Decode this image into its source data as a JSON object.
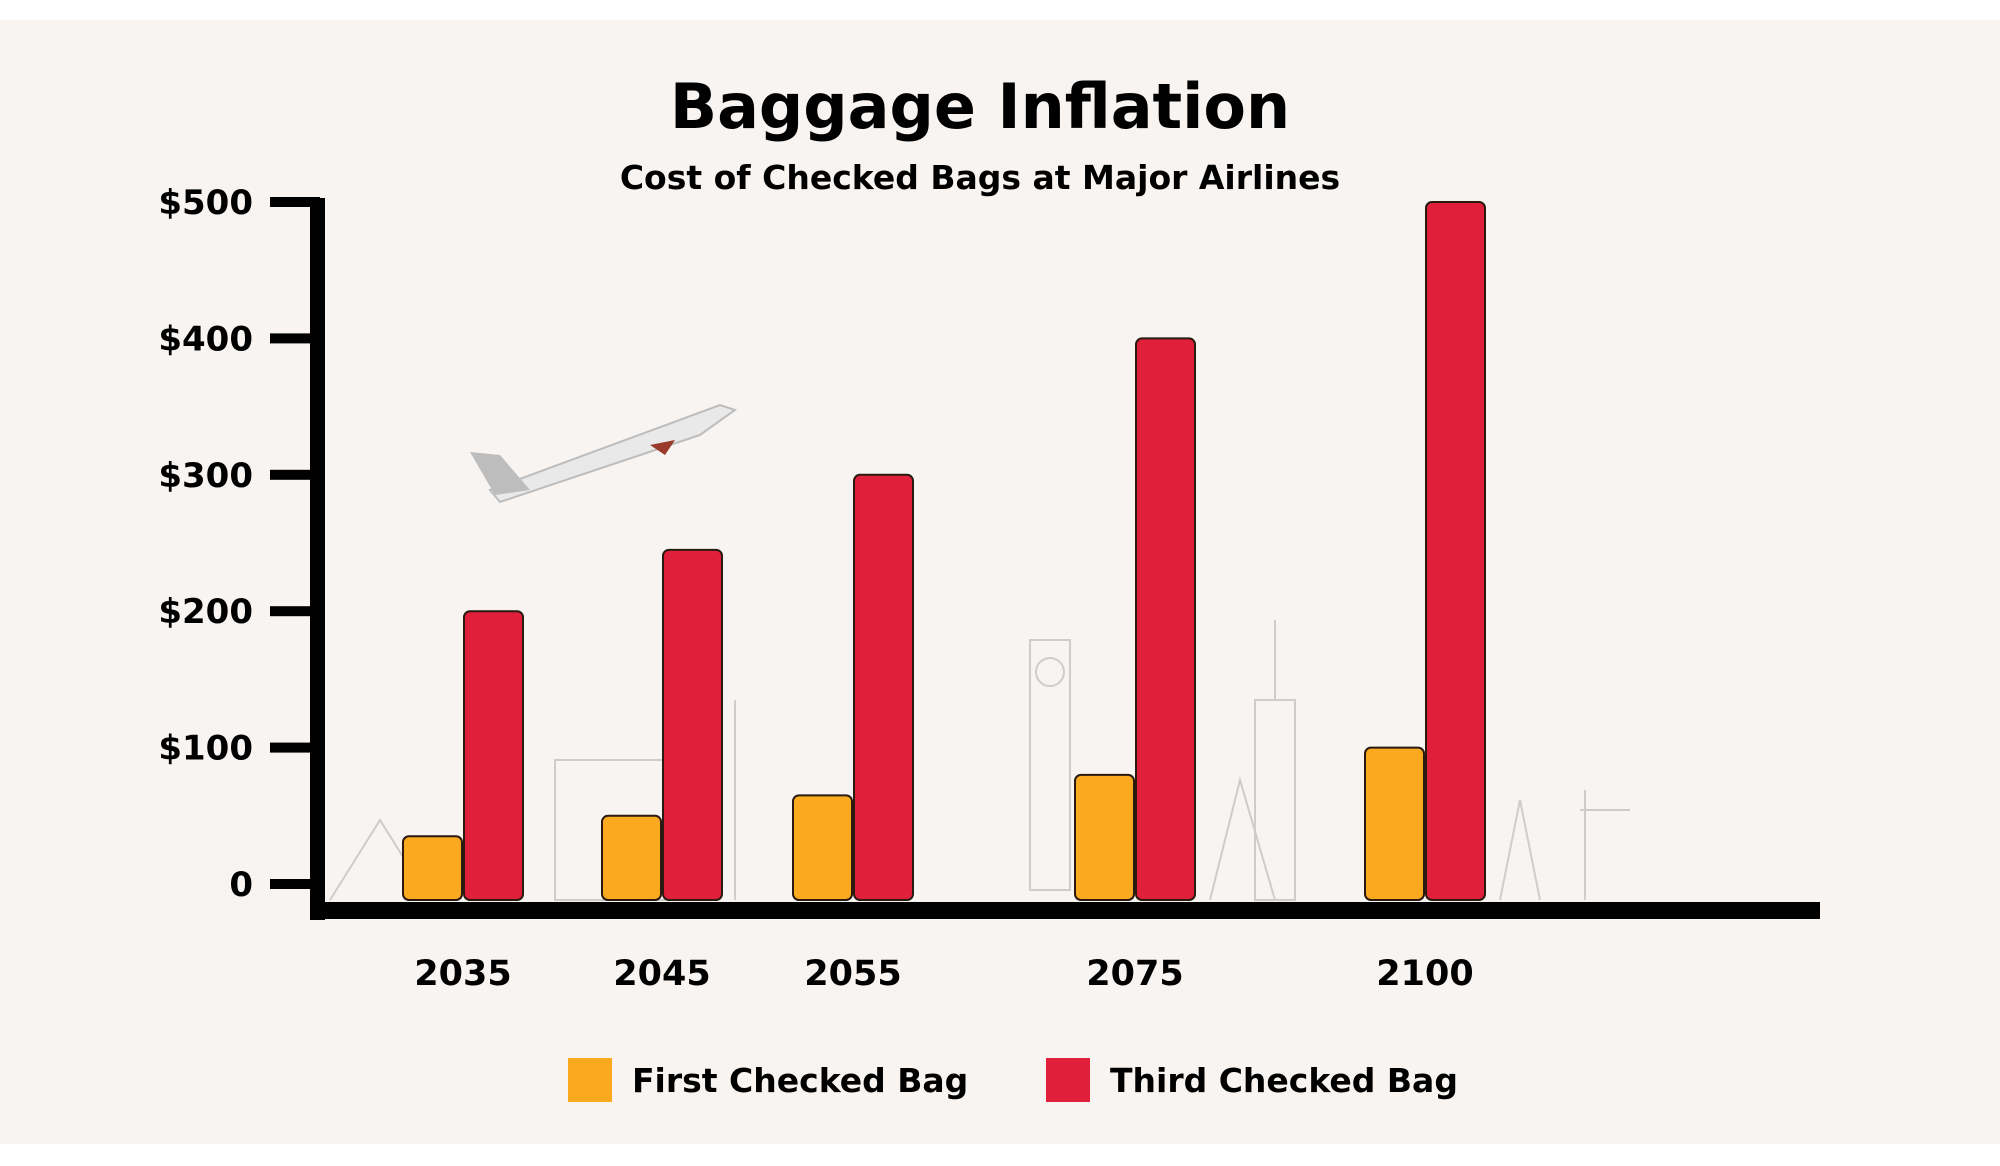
{
  "chart_data": {
    "type": "bar",
    "title": "Baggage Inflation",
    "subtitle": "Cost of Checked Bags at Major Airlines",
    "xlabel": "",
    "ylabel": "",
    "categories": [
      "2035",
      "2045",
      "2055",
      "2075",
      "2100"
    ],
    "series": [
      {
        "name": "First Checked Bag",
        "color": "#fba91f",
        "values": [
          35,
          50,
          65,
          80,
          100
        ]
      },
      {
        "name": "Third Checked Bag",
        "color": "#e0203b",
        "values": [
          200,
          245,
          300,
          400,
          500
        ]
      }
    ],
    "ylim": [
      0,
      500
    ],
    "yticks": [
      0,
      100,
      200,
      300,
      400,
      500
    ],
    "ytick_labels": [
      "0",
      "$100",
      "$200",
      "$300",
      "$400",
      "$500"
    ],
    "grid": false,
    "legend": "bottom",
    "background_color": "#f7f4f1"
  }
}
